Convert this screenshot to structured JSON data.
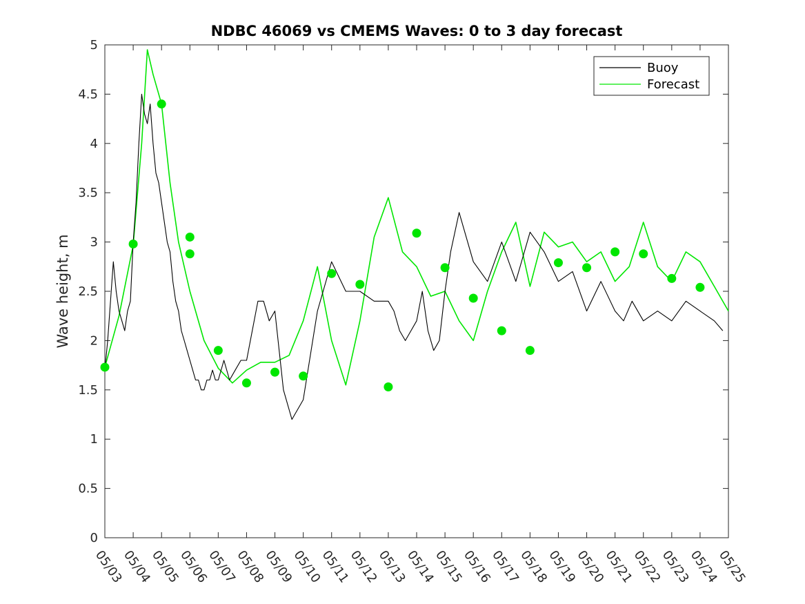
{
  "chart_data": {
    "type": "line",
    "title": "NDBC 46069 vs CMEMS Waves: 0 to 3 day forecast",
    "xlabel": "",
    "ylabel": "Wave height, m",
    "xlim": [
      0,
      22
    ],
    "ylim": [
      0,
      5
    ],
    "x_ticks": [
      "05/03",
      "05/04",
      "05/05",
      "05/06",
      "05/07",
      "05/08",
      "05/09",
      "05/10",
      "05/11",
      "05/12",
      "05/13",
      "05/14",
      "05/15",
      "05/16",
      "05/17",
      "05/18",
      "05/19",
      "05/20",
      "05/21",
      "05/22",
      "05/23",
      "05/24",
      "05/25"
    ],
    "y_ticks": [
      0,
      0.5,
      1,
      1.5,
      2,
      2.5,
      3,
      3.5,
      4,
      4.5,
      5
    ],
    "legend": {
      "placement": "top-right",
      "entries": [
        {
          "name": "Buoy",
          "color": "#000000"
        },
        {
          "name": "Forecast",
          "color": "#00e600"
        }
      ]
    },
    "colors": {
      "buoy": "#000000",
      "forecast": "#00e600"
    },
    "grid": false,
    "series": [
      {
        "name": "Buoy",
        "x": [
          0,
          0.1,
          0.2,
          0.3,
          0.4,
          0.5,
          0.6,
          0.7,
          0.8,
          0.9,
          1,
          1.1,
          1.2,
          1.3,
          1.4,
          1.5,
          1.6,
          1.7,
          1.8,
          1.9,
          2,
          2.1,
          2.2,
          2.3,
          2.4,
          2.5,
          2.6,
          2.7,
          2.8,
          2.9,
          3,
          3.1,
          3.2,
          3.3,
          3.4,
          3.5,
          3.6,
          3.7,
          3.8,
          3.9,
          4,
          4.2,
          4.4,
          4.6,
          4.8,
          5,
          5.2,
          5.4,
          5.6,
          5.8,
          6,
          6.3,
          6.6,
          7,
          7.5,
          8,
          8.5,
          9,
          9.5,
          10,
          10.2,
          10.4,
          10.6,
          10.8,
          11,
          11.2,
          11.4,
          11.6,
          11.8,
          12,
          12.2,
          12.5,
          13,
          13.5,
          14,
          14.5,
          15,
          15.5,
          16,
          16.5,
          17,
          17.5,
          18,
          18.3,
          18.6,
          19,
          19.5,
          20,
          20.5,
          21,
          21.5,
          21.8
        ],
        "values": [
          1.7,
          2.0,
          2.4,
          2.8,
          2.5,
          2.3,
          2.2,
          2.1,
          2.3,
          2.4,
          3.0,
          3.4,
          4.0,
          4.5,
          4.3,
          4.2,
          4.4,
          4.0,
          3.7,
          3.6,
          3.4,
          3.2,
          3.0,
          2.9,
          2.6,
          2.4,
          2.3,
          2.1,
          2.0,
          1.9,
          1.8,
          1.7,
          1.6,
          1.6,
          1.5,
          1.5,
          1.6,
          1.6,
          1.7,
          1.6,
          1.6,
          1.8,
          1.6,
          1.7,
          1.8,
          1.8,
          2.1,
          2.4,
          2.4,
          2.2,
          2.3,
          1.5,
          1.2,
          1.4,
          2.3,
          2.8,
          2.5,
          2.5,
          2.4,
          2.4,
          2.3,
          2.1,
          2.0,
          2.1,
          2.2,
          2.5,
          2.1,
          1.9,
          2.0,
          2.5,
          2.9,
          3.3,
          2.8,
          2.6,
          3.0,
          2.6,
          3.1,
          2.9,
          2.6,
          2.7,
          2.3,
          2.6,
          2.3,
          2.2,
          2.4,
          2.2,
          2.3,
          2.2,
          2.4,
          2.3,
          2.2,
          2.1
        ]
      },
      {
        "name": "Forecast",
        "x": [
          0,
          0.5,
          1,
          1.3,
          1.5,
          1.7,
          2,
          2.3,
          2.6,
          3,
          3.5,
          4,
          4.5,
          5,
          5.5,
          6,
          6.5,
          7,
          7.5,
          8,
          8.5,
          9,
          9.5,
          10,
          10.5,
          11,
          11.5,
          12,
          12.5,
          13,
          13.5,
          14,
          14.5,
          15,
          15.5,
          16,
          16.5,
          17,
          17.5,
          18,
          18.5,
          19,
          19.5,
          20,
          20.5,
          21,
          21.5,
          22
        ],
        "values": [
          1.73,
          2.25,
          2.97,
          4.0,
          4.95,
          4.7,
          4.4,
          3.6,
          3.0,
          2.5,
          2.0,
          1.72,
          1.57,
          1.7,
          1.78,
          1.78,
          1.85,
          2.2,
          2.75,
          2.0,
          1.55,
          2.2,
          3.05,
          3.45,
          2.9,
          2.75,
          2.45,
          2.5,
          2.2,
          2.0,
          2.5,
          2.9,
          3.2,
          2.55,
          3.1,
          2.95,
          3.0,
          2.8,
          2.9,
          2.6,
          2.75,
          3.2,
          2.75,
          2.6,
          2.9,
          2.8,
          2.55,
          2.3
        ]
      }
    ],
    "forecast_points": {
      "x": [
        0,
        1,
        2,
        3,
        3,
        4,
        5,
        6,
        7,
        8,
        9,
        10,
        11,
        12,
        13,
        14,
        15,
        16,
        17,
        18,
        19,
        20,
        21
      ],
      "values": [
        1.73,
        2.98,
        4.4,
        3.05,
        2.88,
        1.9,
        1.57,
        1.68,
        1.64,
        2.68,
        2.57,
        1.53,
        3.09,
        2.74,
        2.43,
        2.1,
        1.9,
        2.79,
        2.74,
        2.9,
        2.88,
        2.63,
        2.54
      ]
    }
  }
}
